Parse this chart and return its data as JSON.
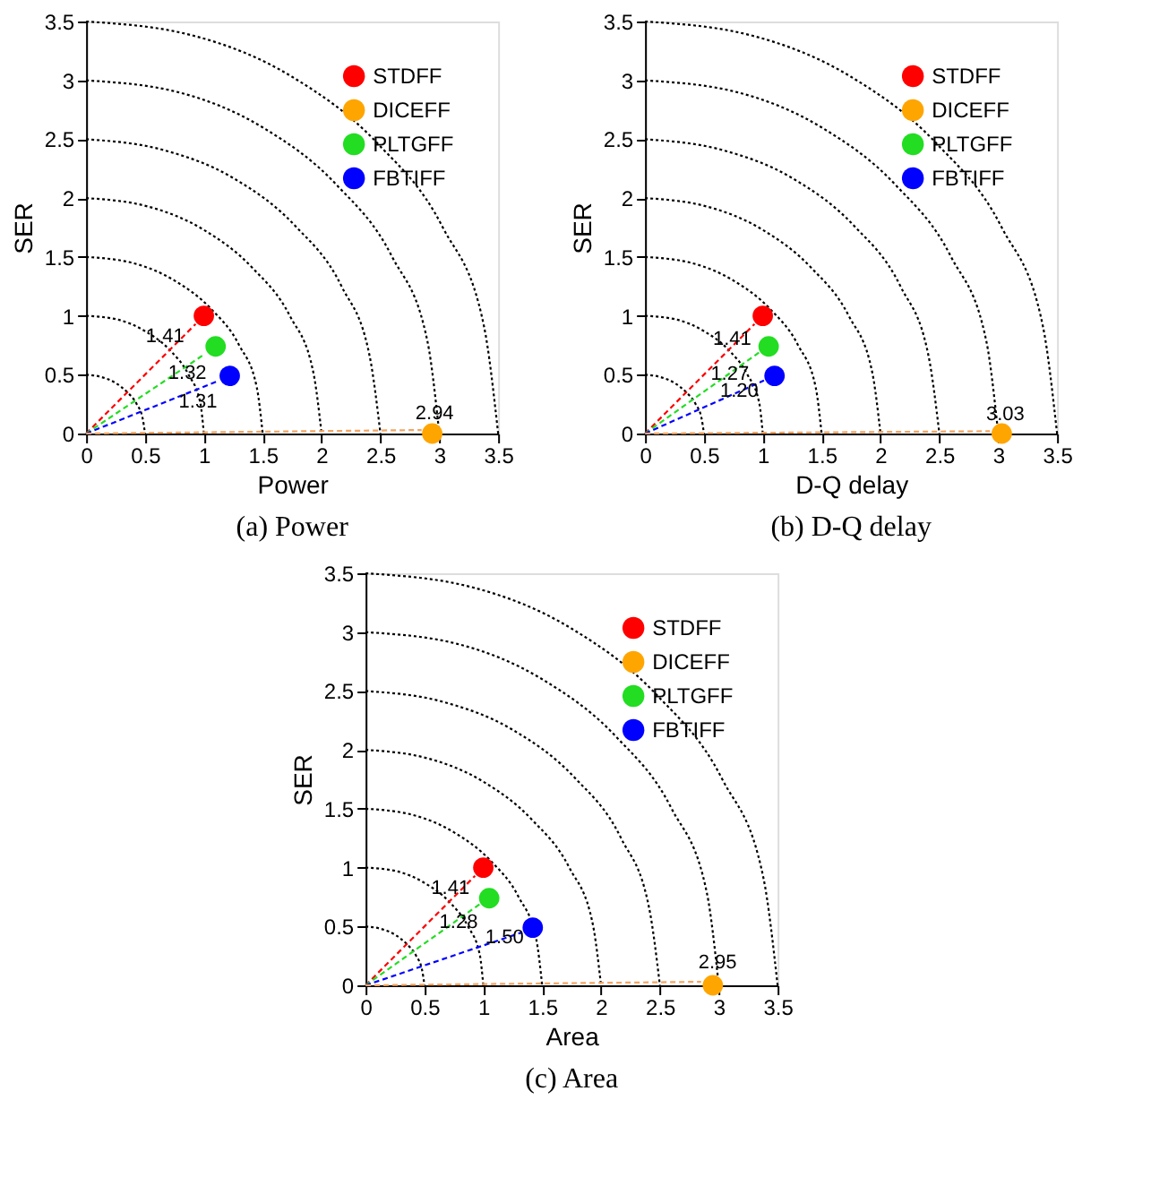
{
  "chart_data": [
    {
      "type": "scatter",
      "xlabel": "Power",
      "ylabel": "SER",
      "annotations": [
        "(a) Power",
        {
          "text": "1.41",
          "x": 0.67,
          "y": 0.82
        },
        {
          "text": "1.32",
          "x": 0.86,
          "y": 0.51
        },
        {
          "text": "1.31",
          "x": 0.95,
          "y": 0.27
        },
        {
          "text": "2.94",
          "x": 2.96,
          "y": 0.17
        }
      ],
      "xlim": [
        0,
        3.5
      ],
      "ylim": [
        0,
        3.5
      ],
      "xticks": [
        0,
        0.5,
        1,
        1.5,
        2,
        2.5,
        3,
        3.5
      ],
      "yticks": [
        0,
        0.5,
        1,
        1.5,
        2,
        2.5,
        3,
        3.5
      ],
      "legend": "top right",
      "marker": "circle",
      "series": [
        {
          "type": "line",
          "color": "#000000",
          "line_style": "dotted",
          "marker": "none",
          "x": [
            0,
            0.13,
            0.25,
            0.35,
            0.43,
            0.48,
            0.5
          ],
          "values": [
            0.5,
            0.48,
            0.43,
            0.35,
            0.25,
            0.13,
            0
          ]
        },
        {
          "type": "line",
          "color": "#000000",
          "line_style": "dotted",
          "marker": "none",
          "x": [
            0,
            0.26,
            0.5,
            0.71,
            0.87,
            0.97,
            1
          ],
          "values": [
            1,
            0.97,
            0.87,
            0.71,
            0.5,
            0.26,
            0
          ]
        },
        {
          "type": "line",
          "color": "#000000",
          "line_style": "dotted",
          "marker": "none",
          "x": [
            0,
            0.39,
            0.75,
            1.06,
            1.3,
            1.45,
            1.5
          ],
          "values": [
            1.5,
            1.45,
            1.3,
            1.06,
            0.75,
            0.39,
            0
          ]
        },
        {
          "type": "line",
          "color": "#000000",
          "line_style": "dotted",
          "marker": "none",
          "x": [
            0,
            0.52,
            1,
            1.41,
            1.73,
            1.93,
            2
          ],
          "values": [
            2,
            1.93,
            1.73,
            1.41,
            1,
            0.52,
            0
          ]
        },
        {
          "type": "line",
          "color": "#000000",
          "line_style": "dotted",
          "marker": "none",
          "x": [
            0,
            0.65,
            1.25,
            1.77,
            2.17,
            2.41,
            2.5
          ],
          "values": [
            2.5,
            2.41,
            2.17,
            1.77,
            1.25,
            0.65,
            0
          ]
        },
        {
          "type": "line",
          "color": "#000000",
          "line_style": "dotted",
          "marker": "none",
          "x": [
            0,
            0.78,
            1.5,
            2.12,
            2.6,
            2.9,
            3
          ],
          "values": [
            3,
            2.9,
            2.6,
            2.12,
            1.5,
            0.78,
            0
          ]
        },
        {
          "type": "line",
          "color": "#000000",
          "line_style": "dotted",
          "marker": "none",
          "x": [
            0,
            0.91,
            1.75,
            2.47,
            3.03,
            3.38,
            3.5
          ],
          "values": [
            3.5,
            3.38,
            3.03,
            2.47,
            1.75,
            0.91,
            0
          ]
        },
        {
          "type": "line",
          "color": "#ff0000",
          "marker": "none",
          "x": [
            0,
            0.93
          ],
          "values": [
            0,
            0.93
          ],
          "line_style": "dashed"
        },
        {
          "type": "line",
          "color": "#22dd22",
          "marker": "none",
          "x": [
            0,
            1.0
          ],
          "values": [
            0,
            0.67
          ],
          "line_style": "dashed"
        },
        {
          "type": "line",
          "color": "#0000ff",
          "marker": "none",
          "x": [
            0,
            1.13
          ],
          "values": [
            0,
            0.45
          ],
          "line_style": "dashed"
        },
        {
          "type": "line",
          "color": "#f4a460",
          "marker": "none",
          "x": [
            0,
            2.85
          ],
          "values": [
            0,
            0.03
          ],
          "line_style": "dashed"
        },
        {
          "name": "STDFF",
          "color": "#ff0000",
          "x": [
            1.0
          ],
          "values": [
            1.0
          ]
        },
        {
          "name": "DICEFF",
          "color": "#ffa500",
          "x": [
            2.94
          ],
          "values": [
            0
          ]
        },
        {
          "name": "PLTGFF",
          "color": "#22dd22",
          "x": [
            1.1
          ],
          "values": [
            0.74
          ]
        },
        {
          "name": "FBTIFF",
          "color": "#0000ff",
          "x": [
            1.22
          ],
          "values": [
            0.49
          ]
        }
      ]
    },
    {
      "type": "scatter",
      "xlabel": "D-Q delay",
      "ylabel": "SER",
      "annotations": [
        "(b) D-Q delay",
        {
          "text": "1.41",
          "x": 0.74,
          "y": 0.8
        },
        {
          "text": "1.27",
          "x": 0.72,
          "y": 0.5
        },
        {
          "text": "1.20",
          "x": 0.8,
          "y": 0.36
        },
        {
          "text": "3.03",
          "x": 3.06,
          "y": 0.16
        }
      ],
      "xlim": [
        0,
        3.5
      ],
      "ylim": [
        0,
        3.5
      ],
      "xticks": [
        0,
        0.5,
        1,
        1.5,
        2,
        2.5,
        3,
        3.5
      ],
      "yticks": [
        0,
        0.5,
        1,
        1.5,
        2,
        2.5,
        3,
        3.5
      ],
      "legend": "top right",
      "marker": "circle",
      "series": [
        {
          "type": "line",
          "color": "#000000",
          "line_style": "dotted",
          "marker": "none",
          "x": [
            0,
            0.13,
            0.25,
            0.35,
            0.43,
            0.48,
            0.5
          ],
          "values": [
            0.5,
            0.48,
            0.43,
            0.35,
            0.25,
            0.13,
            0
          ]
        },
        {
          "type": "line",
          "color": "#000000",
          "line_style": "dotted",
          "marker": "none",
          "x": [
            0,
            0.26,
            0.5,
            0.71,
            0.87,
            0.97,
            1
          ],
          "values": [
            1,
            0.97,
            0.87,
            0.71,
            0.5,
            0.26,
            0
          ]
        },
        {
          "type": "line",
          "color": "#000000",
          "line_style": "dotted",
          "marker": "none",
          "x": [
            0,
            0.39,
            0.75,
            1.06,
            1.3,
            1.45,
            1.5
          ],
          "values": [
            1.5,
            1.45,
            1.3,
            1.06,
            0.75,
            0.39,
            0
          ]
        },
        {
          "type": "line",
          "color": "#000000",
          "line_style": "dotted",
          "marker": "none",
          "x": [
            0,
            0.52,
            1,
            1.41,
            1.73,
            1.93,
            2
          ],
          "values": [
            2,
            1.93,
            1.73,
            1.41,
            1,
            0.52,
            0
          ]
        },
        {
          "type": "line",
          "color": "#000000",
          "line_style": "dotted",
          "marker": "none",
          "x": [
            0,
            0.65,
            1.25,
            1.77,
            2.17,
            2.41,
            2.5
          ],
          "values": [
            2.5,
            2.41,
            2.17,
            1.77,
            1.25,
            0.65,
            0
          ]
        },
        {
          "type": "line",
          "color": "#000000",
          "line_style": "dotted",
          "marker": "none",
          "x": [
            0,
            0.78,
            1.5,
            2.12,
            2.6,
            2.9,
            3
          ],
          "values": [
            3,
            2.9,
            2.6,
            2.12,
            1.5,
            0.78,
            0
          ]
        },
        {
          "type": "line",
          "color": "#000000",
          "line_style": "dotted",
          "marker": "none",
          "x": [
            0,
            0.91,
            1.75,
            2.47,
            3.03,
            3.38,
            3.5
          ],
          "values": [
            3.5,
            3.38,
            3.03,
            2.47,
            1.75,
            0.91,
            0
          ]
        },
        {
          "type": "line",
          "color": "#ff0000",
          "marker": "none",
          "x": [
            0,
            0.93
          ],
          "values": [
            0,
            0.93
          ],
          "line_style": "dashed"
        },
        {
          "type": "line",
          "color": "#22dd22",
          "marker": "none",
          "x": [
            0,
            0.97
          ],
          "values": [
            0,
            0.69
          ],
          "line_style": "dashed"
        },
        {
          "type": "line",
          "color": "#0000ff",
          "marker": "none",
          "x": [
            0,
            1.01
          ],
          "values": [
            0,
            0.45
          ],
          "line_style": "dashed"
        },
        {
          "type": "line",
          "color": "#f4a460",
          "marker": "none",
          "x": [
            0,
            2.93
          ],
          "values": [
            0,
            0.02
          ],
          "line_style": "dashed"
        },
        {
          "name": "STDFF",
          "color": "#ff0000",
          "x": [
            1.0
          ],
          "values": [
            1.0
          ]
        },
        {
          "name": "DICEFF",
          "color": "#ffa500",
          "x": [
            3.03
          ],
          "values": [
            0
          ]
        },
        {
          "name": "PLTGFF",
          "color": "#22dd22",
          "x": [
            1.05
          ],
          "values": [
            0.74
          ]
        },
        {
          "name": "FBTIFF",
          "color": "#0000ff",
          "x": [
            1.1
          ],
          "values": [
            0.49
          ]
        }
      ]
    },
    {
      "type": "scatter",
      "xlabel": "Area",
      "ylabel": "SER",
      "annotations": [
        "(c) Area",
        {
          "text": "1.41",
          "x": 0.72,
          "y": 0.82
        },
        {
          "text": "1.28",
          "x": 0.79,
          "y": 0.53
        },
        {
          "text": "1.50",
          "x": 1.18,
          "y": 0.4
        },
        {
          "text": "2.95",
          "x": 2.99,
          "y": 0.19
        }
      ],
      "xlim": [
        0,
        3.5
      ],
      "ylim": [
        0,
        3.5
      ],
      "xticks": [
        0,
        0.5,
        1,
        1.5,
        2,
        2.5,
        3,
        3.5
      ],
      "yticks": [
        0,
        0.5,
        1,
        1.5,
        2,
        2.5,
        3,
        3.5
      ],
      "legend": "top right",
      "marker": "circle",
      "series": [
        {
          "type": "line",
          "color": "#000000",
          "line_style": "dotted",
          "marker": "none",
          "x": [
            0,
            0.13,
            0.25,
            0.35,
            0.43,
            0.48,
            0.5
          ],
          "values": [
            0.5,
            0.48,
            0.43,
            0.35,
            0.25,
            0.13,
            0
          ]
        },
        {
          "type": "line",
          "color": "#000000",
          "line_style": "dotted",
          "marker": "none",
          "x": [
            0,
            0.26,
            0.5,
            0.71,
            0.87,
            0.97,
            1
          ],
          "values": [
            1,
            0.97,
            0.87,
            0.71,
            0.5,
            0.26,
            0
          ]
        },
        {
          "type": "line",
          "color": "#000000",
          "line_style": "dotted",
          "marker": "none",
          "x": [
            0,
            0.39,
            0.75,
            1.06,
            1.3,
            1.45,
            1.5
          ],
          "values": [
            1.5,
            1.45,
            1.3,
            1.06,
            0.75,
            0.39,
            0
          ]
        },
        {
          "type": "line",
          "color": "#000000",
          "line_style": "dotted",
          "marker": "none",
          "x": [
            0,
            0.52,
            1,
            1.41,
            1.73,
            1.93,
            2
          ],
          "values": [
            2,
            1.93,
            1.73,
            1.41,
            1,
            0.52,
            0
          ]
        },
        {
          "type": "line",
          "color": "#000000",
          "line_style": "dotted",
          "marker": "none",
          "x": [
            0,
            0.65,
            1.25,
            1.77,
            2.17,
            2.41,
            2.5
          ],
          "values": [
            2.5,
            2.41,
            2.17,
            1.77,
            1.25,
            0.65,
            0
          ]
        },
        {
          "type": "line",
          "color": "#000000",
          "line_style": "dotted",
          "marker": "none",
          "x": [
            0,
            0.78,
            1.5,
            2.12,
            2.6,
            2.9,
            3
          ],
          "values": [
            3,
            2.9,
            2.6,
            2.12,
            1.5,
            0.78,
            0
          ]
        },
        {
          "type": "line",
          "color": "#000000",
          "line_style": "dotted",
          "marker": "none",
          "x": [
            0,
            0.91,
            1.75,
            2.47,
            3.03,
            3.38,
            3.5
          ],
          "values": [
            3.5,
            3.38,
            3.03,
            2.47,
            1.75,
            0.91,
            0
          ]
        },
        {
          "type": "line",
          "color": "#ff0000",
          "marker": "none",
          "x": [
            0,
            0.93
          ],
          "values": [
            0,
            0.93
          ],
          "line_style": "dashed"
        },
        {
          "type": "line",
          "color": "#22dd22",
          "marker": "none",
          "x": [
            0,
            0.97
          ],
          "values": [
            0,
            0.69
          ],
          "line_style": "dashed"
        },
        {
          "type": "line",
          "color": "#0000ff",
          "marker": "none",
          "x": [
            0,
            1.33
          ],
          "values": [
            0,
            0.45
          ],
          "line_style": "dashed"
        },
        {
          "type": "line",
          "color": "#f4a460",
          "marker": "none",
          "x": [
            0,
            2.85
          ],
          "values": [
            0,
            0.03
          ],
          "line_style": "dashed"
        },
        {
          "name": "STDFF",
          "color": "#ff0000",
          "x": [
            1.0
          ],
          "values": [
            1.0
          ]
        },
        {
          "name": "DICEFF",
          "color": "#ffa500",
          "x": [
            2.95
          ],
          "values": [
            0
          ]
        },
        {
          "name": "PLTGFF",
          "color": "#22dd22",
          "x": [
            1.05
          ],
          "values": [
            0.74
          ]
        },
        {
          "name": "FBTIFF",
          "color": "#0000ff",
          "x": [
            1.42
          ],
          "values": [
            0.49
          ]
        }
      ]
    }
  ]
}
